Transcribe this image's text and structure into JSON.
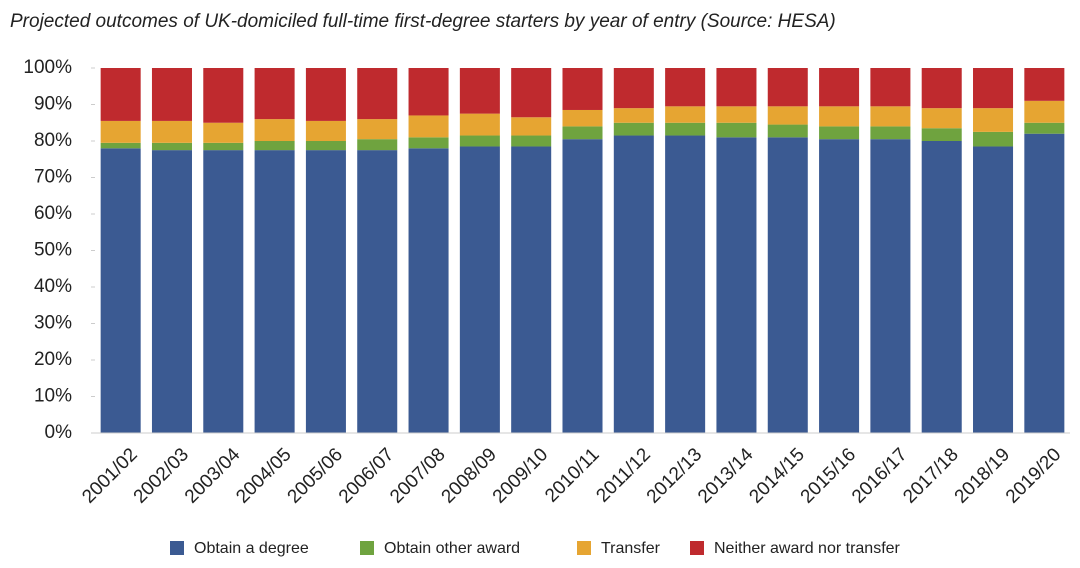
{
  "chart_data": {
    "type": "stacked_bar",
    "title": "Projected outcomes of UK-domiciled full-time first-degree starters by year of entry (Source: HESA)",
    "categories": [
      "2001/02",
      "2002/03",
      "2003/04",
      "2004/05",
      "2005/06",
      "2006/07",
      "2007/08",
      "2008/09",
      "2009/10",
      "2010/11",
      "2011/12",
      "2012/13",
      "2013/14",
      "2014/15",
      "2015/16",
      "2016/17",
      "2017/18",
      "2018/19",
      "2019/20"
    ],
    "series": [
      {
        "name": "Obtain a degree",
        "color": "#3b5a92",
        "values": [
          78,
          77.5,
          77.5,
          77.5,
          77.5,
          77.5,
          78,
          78.5,
          78.5,
          80.5,
          81.5,
          81.5,
          81,
          81,
          80.5,
          80.5,
          80,
          78.5,
          82
        ]
      },
      {
        "name": "Obtain other award",
        "color": "#6fa33f",
        "values": [
          1.5,
          2,
          2,
          2.5,
          2.5,
          3,
          3,
          3,
          3,
          3.5,
          3.5,
          3.5,
          4,
          3.5,
          3.5,
          3.5,
          3.5,
          4,
          3
        ]
      },
      {
        "name": "Transfer",
        "color": "#e6a532",
        "values": [
          6,
          6,
          5.5,
          6,
          5.5,
          5.5,
          6,
          6,
          5,
          4.5,
          4,
          4.5,
          4.5,
          5,
          5.5,
          5.5,
          5.5,
          6.5,
          6
        ]
      },
      {
        "name": "Neither award nor transfer",
        "color": "#bf2a2e",
        "values": [
          14.5,
          14.5,
          15,
          14,
          14.5,
          14,
          13,
          12.5,
          13.5,
          11.5,
          11,
          10.5,
          10.5,
          10.5,
          10.5,
          10.5,
          11,
          11,
          9
        ]
      }
    ],
    "ylim": [
      0,
      100
    ],
    "yticks": [
      {
        "value": 0,
        "label": "0%"
      },
      {
        "value": 10,
        "label": "10%"
      },
      {
        "value": 20,
        "label": "20%"
      },
      {
        "value": 30,
        "label": "30%"
      },
      {
        "value": 40,
        "label": "40%"
      },
      {
        "value": 50,
        "label": "50%"
      },
      {
        "value": 60,
        "label": "60%"
      },
      {
        "value": 70,
        "label": "70%"
      },
      {
        "value": 80,
        "label": "80%"
      },
      {
        "value": 90,
        "label": "90%"
      },
      {
        "value": 100,
        "label": "100%"
      }
    ],
    "legend": "bottom"
  }
}
